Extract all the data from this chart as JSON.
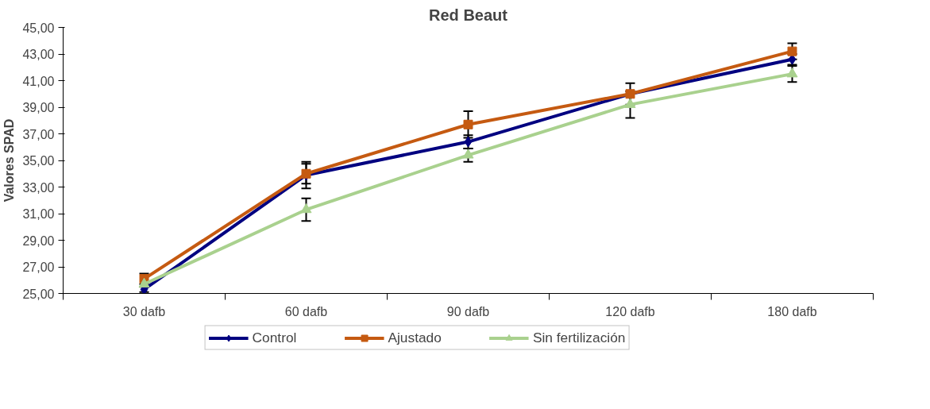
{
  "chart_data": {
    "type": "line",
    "title": "Red Beaut",
    "ylabel": "Valores SPAD",
    "categories": [
      "30 dafb",
      "60 dafb",
      "90 dafb",
      "120 dafb",
      "180 dafb"
    ],
    "ylim": [
      25,
      45
    ],
    "yticks": [
      {
        "value": 25,
        "label": "25,00"
      },
      {
        "value": 27,
        "label": "27,00"
      },
      {
        "value": 29,
        "label": "29,00"
      },
      {
        "value": 31,
        "label": "31,00"
      },
      {
        "value": 33,
        "label": "33,00"
      },
      {
        "value": 35,
        "label": "35,00"
      },
      {
        "value": 37,
        "label": "37,00"
      },
      {
        "value": 39,
        "label": "39,00"
      },
      {
        "value": 41,
        "label": "41,00"
      },
      {
        "value": 43,
        "label": "43,00"
      },
      {
        "value": 45,
        "label": "45,00"
      }
    ],
    "grid": false,
    "legend": "bottom",
    "line_style": "solid",
    "series": [
      {
        "name": "Control",
        "color": "#000080",
        "marker": "diamond",
        "values": [
          25.3,
          33.9,
          36.4,
          40.0,
          42.6
        ],
        "errors": [
          0.2,
          1.0,
          0.5,
          null,
          0.4
        ]
      },
      {
        "name": "Ajustado",
        "color": "#c55a11",
        "marker": "square",
        "values": [
          26.1,
          34.0,
          37.7,
          40.0,
          43.2
        ],
        "errors": [
          0.4,
          0.75,
          1.0,
          0.8,
          0.6
        ]
      },
      {
        "name": "Sin fertilización",
        "color": "#a9d18e",
        "marker": "triangle",
        "values": [
          25.7,
          31.3,
          35.4,
          39.2,
          41.5
        ],
        "errors": [
          null,
          0.85,
          0.5,
          1.0,
          0.6
        ]
      }
    ]
  }
}
